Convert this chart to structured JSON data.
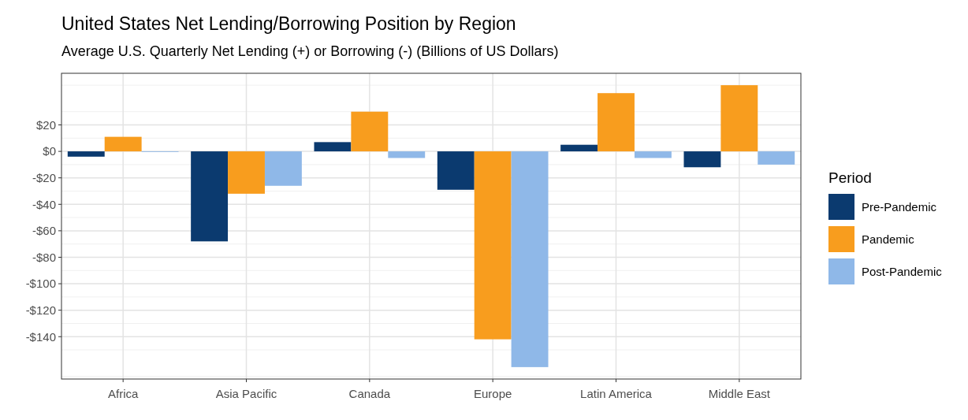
{
  "chart_data": {
    "type": "bar",
    "title": "United States Net Lending/Borrowing Position by Region",
    "subtitle": "Average U.S. Quarterly Net Lending (+) or Borrowing (-) (Billions of US Dollars)",
    "categories": [
      "Africa",
      "Asia Pacific",
      "Canada",
      "Europe",
      "Latin America",
      "Middle East"
    ],
    "series": [
      {
        "name": "Pre-Pandemic",
        "color": "#0b3a6f",
        "values": [
          -4,
          -68,
          7,
          -29,
          5,
          -12
        ]
      },
      {
        "name": "Pandemic",
        "color": "#f89d1e",
        "values": [
          11,
          -32,
          30,
          -142,
          44,
          50
        ]
      },
      {
        "name": "Post-Pandemic",
        "color": "#8fb8e8",
        "values": [
          -0.5,
          -26,
          -5,
          -163,
          -5,
          -10
        ]
      }
    ],
    "legend_title": "Period",
    "legend": "right",
    "ylim": [
      -172,
      59
    ],
    "yticks": [
      {
        "value": -140,
        "label": "-$140"
      },
      {
        "value": -120,
        "label": "-$120"
      },
      {
        "value": -100,
        "label": "-$100"
      },
      {
        "value": -80,
        "label": "-$80"
      },
      {
        "value": -60,
        "label": "-$60"
      },
      {
        "value": -40,
        "label": "-$40"
      },
      {
        "value": -20,
        "label": "-$20"
      },
      {
        "value": 0,
        "label": "$0"
      },
      {
        "value": 20,
        "label": "$20"
      }
    ],
    "grid": true
  }
}
